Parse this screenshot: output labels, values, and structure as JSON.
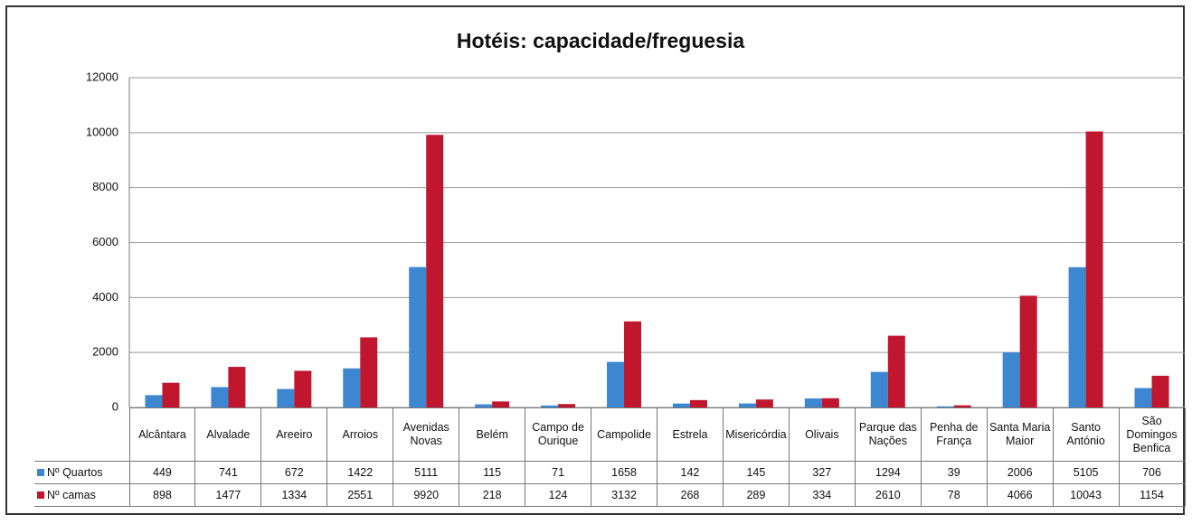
{
  "chart_data": {
    "type": "bar",
    "title": "Hotéis: capacidade/freguesia",
    "categories": [
      "Alcântara",
      "Alvalade",
      "Areeiro",
      "Arroios",
      "Avenidas Novas",
      "Belém",
      "Campo de Ourique",
      "Campolide",
      "Estrela",
      "Misericórdia",
      "Olivais",
      "Parque das Nações",
      "Penha de França",
      "Santa Maria Maior",
      "Santo António",
      "São Domingos Benfica"
    ],
    "series": [
      {
        "name": "Nº Quartos",
        "color": "#3d87d0",
        "values": [
          449,
          741,
          672,
          1422,
          5111,
          115,
          71,
          1658,
          142,
          145,
          327,
          1294,
          39,
          2006,
          5105,
          706
        ]
      },
      {
        "name": "Nº camas",
        "color": "#c0162e",
        "values": [
          898,
          1477,
          1334,
          2551,
          9920,
          218,
          124,
          3132,
          268,
          289,
          334,
          2610,
          78,
          4066,
          10043,
          1154
        ]
      }
    ],
    "ylim": [
      0,
      12000
    ],
    "yticks": [
      0,
      2000,
      4000,
      6000,
      8000,
      10000,
      12000
    ],
    "grid": true
  }
}
